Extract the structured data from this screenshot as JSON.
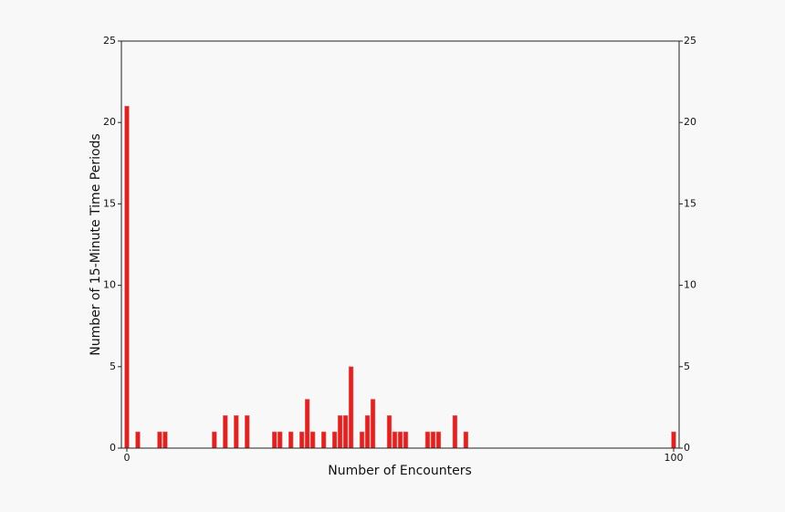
{
  "chart_data": {
    "type": "bar",
    "xlabel": "Number of Encounters",
    "ylabel": "Number of 15-Minute Time Periods",
    "x": [
      0,
      2,
      6,
      7,
      16,
      18,
      20,
      22,
      27,
      28,
      30,
      32,
      33,
      34,
      36,
      38,
      39,
      40,
      41,
      43,
      44,
      45,
      48,
      49,
      50,
      51,
      55,
      56,
      57,
      60,
      62,
      100
    ],
    "values": [
      21,
      1,
      1,
      1,
      1,
      2,
      2,
      2,
      1,
      1,
      1,
      1,
      3,
      1,
      1,
      1,
      2,
      2,
      5,
      1,
      2,
      3,
      2,
      1,
      1,
      1,
      1,
      1,
      1,
      2,
      1,
      1
    ],
    "color": "#dd2222",
    "xlim": [
      -1,
      101
    ],
    "xticks": [
      0,
      100
    ],
    "ylim": [
      0,
      25
    ],
    "yticks": [
      0,
      5,
      10,
      15,
      20,
      25
    ],
    "y2lim": [
      0,
      25
    ],
    "y2ticks": [
      0,
      5,
      10,
      15,
      20,
      25
    ]
  }
}
